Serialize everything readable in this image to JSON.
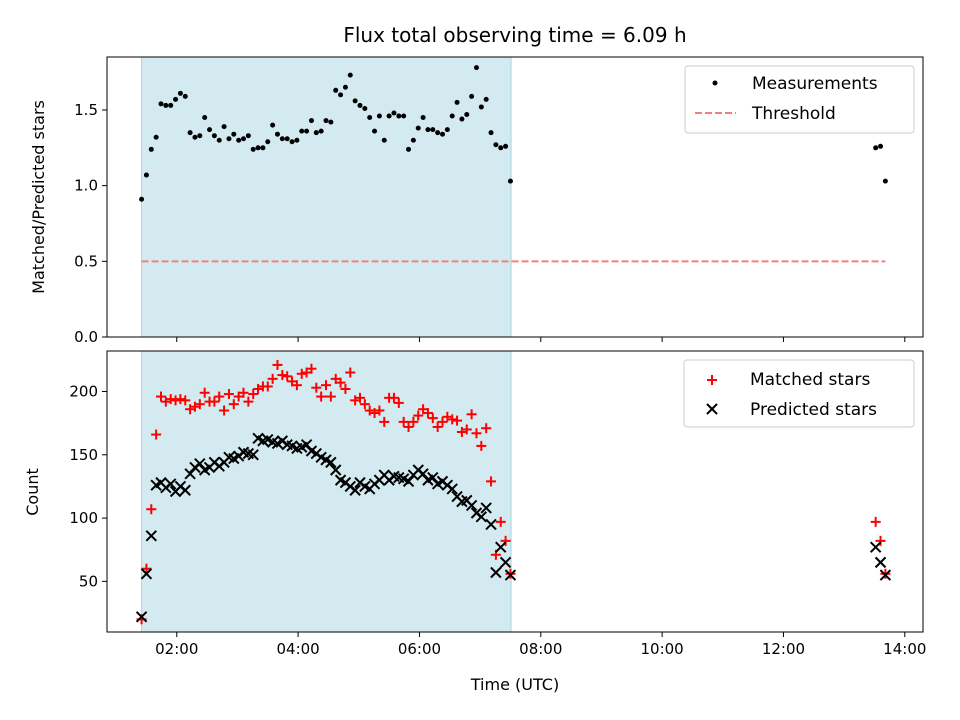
{
  "chart_data": {
    "title": "Flux total observing time = 6.09 h",
    "xlabel": "Time (UTC)",
    "x_ticks": [
      "02:00",
      "04:00",
      "06:00",
      "08:00",
      "10:00",
      "12:00",
      "14:00"
    ],
    "x_tick_hours": [
      2,
      4,
      6,
      8,
      10,
      12,
      14
    ],
    "xlim_hours": [
      0.85,
      14.3
    ],
    "shaded_span_hours": [
      1.42,
      7.51
    ],
    "shade_color": "#d4eaf1",
    "panels": [
      {
        "type": "scatter",
        "ylabel": "Matched/Predicted stars",
        "ylim": [
          0,
          1.85
        ],
        "y_ticks": [
          0.0,
          0.5,
          1.0,
          1.5
        ],
        "y_tick_labels": [
          "0.0",
          "0.5",
          "1.0",
          "1.5"
        ],
        "legend_position": "top-right",
        "series": [
          {
            "name": "Measurements",
            "marker": "dot",
            "color": "#000000",
            "x": [
              1.42,
              1.5,
              1.58,
              1.66,
              1.74,
              1.82,
              1.9,
              1.98,
              2.06,
              2.14,
              2.22,
              2.3,
              2.38,
              2.46,
              2.54,
              2.62,
              2.7,
              2.78,
              2.86,
              2.94,
              3.02,
              3.1,
              3.18,
              3.26,
              3.34,
              3.42,
              3.5,
              3.58,
              3.66,
              3.74,
              3.82,
              3.9,
              3.98,
              4.06,
              4.14,
              4.22,
              4.3,
              4.38,
              4.46,
              4.54,
              4.62,
              4.7,
              4.78,
              4.86,
              4.94,
              5.02,
              5.1,
              5.18,
              5.26,
              5.34,
              5.42,
              5.5,
              5.58,
              5.66,
              5.74,
              5.82,
              5.9,
              5.98,
              6.06,
              6.14,
              6.22,
              6.3,
              6.38,
              6.46,
              6.54,
              6.62,
              6.7,
              6.78,
              6.86,
              6.94,
              7.02,
              7.1,
              7.18,
              7.26,
              7.34,
              7.42,
              7.5,
              13.52,
              13.6,
              13.68
            ],
            "y": [
              0.91,
              1.07,
              1.24,
              1.32,
              1.54,
              1.53,
              1.53,
              1.57,
              1.61,
              1.59,
              1.35,
              1.32,
              1.33,
              1.45,
              1.37,
              1.33,
              1.3,
              1.39,
              1.31,
              1.34,
              1.3,
              1.31,
              1.33,
              1.24,
              1.25,
              1.25,
              1.29,
              1.4,
              1.34,
              1.31,
              1.31,
              1.29,
              1.3,
              1.36,
              1.36,
              1.43,
              1.35,
              1.36,
              1.43,
              1.42,
              1.63,
              1.6,
              1.65,
              1.73,
              1.56,
              1.53,
              1.51,
              1.45,
              1.36,
              1.46,
              1.3,
              1.46,
              1.48,
              1.46,
              1.46,
              1.24,
              1.3,
              1.38,
              1.45,
              1.37,
              1.37,
              1.35,
              1.34,
              1.37,
              1.46,
              1.55,
              1.44,
              1.47,
              1.59,
              1.78,
              1.52,
              1.57,
              1.35,
              1.27,
              1.25,
              1.26,
              1.03,
              1.25,
              1.26,
              1.03
            ]
          },
          {
            "name": "Threshold",
            "marker": "dashed-line",
            "color": "#f08080",
            "x": [
              1.42,
              13.68
            ],
            "y": [
              0.5,
              0.5
            ]
          }
        ]
      },
      {
        "type": "scatter",
        "ylabel": "Count",
        "ylim": [
          10,
          232
        ],
        "y_ticks": [
          50,
          100,
          150,
          200
        ],
        "y_tick_labels": [
          "50",
          "100",
          "150",
          "200"
        ],
        "legend_position": "top-right",
        "series": [
          {
            "name": "Matched stars",
            "marker": "plus",
            "color": "#ff0000",
            "x": [
              1.42,
              1.5,
              1.58,
              1.66,
              1.74,
              1.82,
              1.9,
              1.98,
              2.06,
              2.14,
              2.22,
              2.3,
              2.38,
              2.46,
              2.54,
              2.62,
              2.7,
              2.78,
              2.86,
              2.94,
              3.02,
              3.1,
              3.18,
              3.26,
              3.34,
              3.42,
              3.5,
              3.58,
              3.66,
              3.74,
              3.82,
              3.9,
              3.98,
              4.06,
              4.14,
              4.22,
              4.3,
              4.38,
              4.46,
              4.54,
              4.62,
              4.7,
              4.78,
              4.86,
              4.94,
              5.02,
              5.1,
              5.18,
              5.26,
              5.34,
              5.42,
              5.5,
              5.58,
              5.66,
              5.74,
              5.82,
              5.9,
              5.98,
              6.06,
              6.14,
              6.22,
              6.3,
              6.38,
              6.46,
              6.54,
              6.62,
              6.7,
              6.78,
              6.86,
              6.94,
              7.02,
              7.1,
              7.18,
              7.26,
              7.34,
              7.42,
              7.5,
              13.52,
              13.6,
              13.68
            ],
            "y": [
              20,
              60,
              107,
              166,
              196,
              192,
              194,
              193,
              194,
              193,
              186,
              188,
              190,
              199,
              192,
              192,
              196,
              185,
              198,
              190,
              196,
              199,
              192,
              198,
              202,
              204,
              204,
              210,
              221,
              213,
              212,
              208,
              205,
              214,
              215,
              218,
              203,
              196,
              205,
              196,
              210,
              207,
              202,
              215,
              193,
              195,
              190,
              185,
              183,
              185,
              176,
              195,
              195,
              191,
              176,
              172,
              176,
              181,
              186,
              183,
              179,
              172,
              176,
              180,
              178,
              177,
              168,
              170,
              182,
              167,
              157,
              171,
              129,
              71,
              97,
              82,
              56,
              97,
              82,
              56
            ]
          },
          {
            "name": "Predicted stars",
            "marker": "x",
            "color": "#000000",
            "x": [
              1.42,
              1.5,
              1.58,
              1.66,
              1.74,
              1.82,
              1.9,
              1.98,
              2.06,
              2.14,
              2.22,
              2.3,
              2.38,
              2.46,
              2.54,
              2.62,
              2.7,
              2.78,
              2.86,
              2.94,
              3.02,
              3.1,
              3.18,
              3.26,
              3.34,
              3.42,
              3.5,
              3.58,
              3.66,
              3.74,
              3.82,
              3.9,
              3.98,
              4.06,
              4.14,
              4.22,
              4.3,
              4.38,
              4.46,
              4.54,
              4.62,
              4.7,
              4.78,
              4.86,
              4.94,
              5.02,
              5.1,
              5.18,
              5.26,
              5.34,
              5.42,
              5.5,
              5.58,
              5.66,
              5.74,
              5.82,
              5.9,
              5.98,
              6.06,
              6.14,
              6.22,
              6.3,
              6.38,
              6.46,
              6.54,
              6.62,
              6.7,
              6.78,
              6.86,
              6.94,
              7.02,
              7.1,
              7.18,
              7.26,
              7.34,
              7.42,
              7.5,
              13.52,
              13.6,
              13.68
            ],
            "y": [
              22,
              56,
              86,
              126,
              128,
              124,
              127,
              121,
              125,
              122,
              135,
              140,
              143,
              138,
              140,
              144,
              141,
              144,
              148,
              147,
              149,
              152,
              151,
              150,
              163,
              161,
              162,
              160,
              159,
              161,
              158,
              157,
              155,
              156,
              158,
              153,
              151,
              148,
              146,
              144,
              138,
              130,
              128,
              125,
              122,
              128,
              125,
              123,
              127,
              130,
              134,
              130,
              133,
              132,
              131,
              129,
              134,
              138,
              135,
              130,
              132,
              127,
              129,
              126,
              123,
              117,
              113,
              114,
              110,
              104,
              101,
              108,
              95,
              57,
              77,
              65,
              55,
              77,
              65,
              55
            ]
          }
        ]
      }
    ]
  }
}
